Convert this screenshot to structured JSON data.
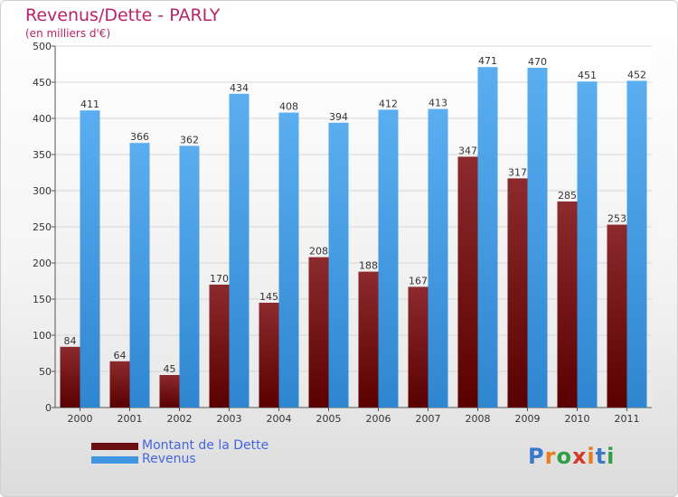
{
  "title": "Revenus/Dette - PARLY",
  "subtitle": "(en milliers d'€)",
  "chart_data": {
    "type": "bar",
    "title": "Revenus/Dette - PARLY",
    "subtitle": "(en milliers d'€)",
    "categories": [
      "2000",
      "2001",
      "2002",
      "2003",
      "2004",
      "2005",
      "2006",
      "2007",
      "2008",
      "2009",
      "2010",
      "2011"
    ],
    "series": [
      {
        "name": "Montant de la Dette",
        "color": "#7a1f22",
        "values": [
          84,
          64,
          45,
          170,
          145,
          208,
          188,
          167,
          347,
          317,
          285,
          253
        ]
      },
      {
        "name": "Revenus",
        "color": "#4a9fe6",
        "values": [
          411,
          366,
          362,
          434,
          408,
          394,
          412,
          413,
          471,
          470,
          451,
          452
        ]
      }
    ],
    "ylim": [
      0,
      500
    ],
    "yticks": [
      0,
      50,
      100,
      150,
      200,
      250,
      300,
      350,
      400,
      450,
      500
    ],
    "grid": true,
    "xlabel": "",
    "ylabel": "",
    "legend": "bottom-left"
  },
  "legend": [
    {
      "label": "Montant de la Dette",
      "color": "#6b1010"
    },
    {
      "label": "Revenus",
      "color": "#3f95e0"
    }
  ],
  "logo": {
    "letters": [
      "P",
      "r",
      "o",
      "x",
      "i",
      "t",
      "i"
    ],
    "colors": [
      "#3b78c9",
      "#e87b1e",
      "#2f9e44",
      "#d23a2a",
      "#e87b1e",
      "#3b78c9",
      "#2f9e44"
    ]
  }
}
